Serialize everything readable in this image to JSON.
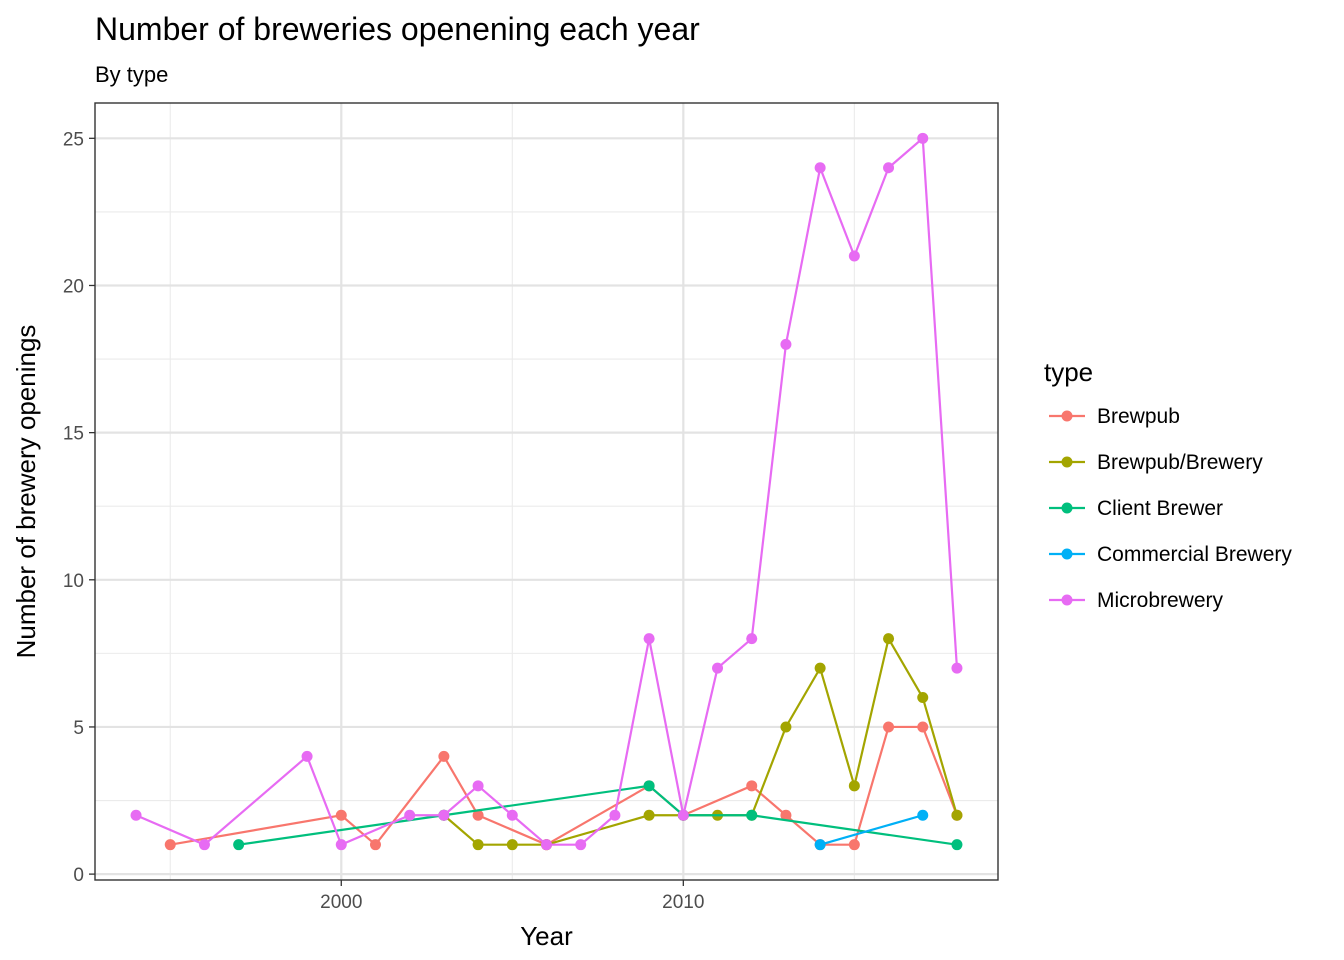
{
  "chart_data": {
    "type": "line",
    "title": "Number of breweries openening each year",
    "subtitle": "By type",
    "xlabel": "Year",
    "ylabel": "Number of brewery openings",
    "xlim": [
      1992.8,
      2019.2
    ],
    "ylim": [
      -0.2,
      26.2
    ],
    "x_ticks": [
      2000,
      2010
    ],
    "y_ticks": [
      0,
      5,
      10,
      15,
      20,
      25
    ],
    "grid": true,
    "legend": {
      "title": "type",
      "placement": "right"
    },
    "series": [
      {
        "name": "Brewpub",
        "color": "#F8766D",
        "points": [
          [
            1995,
            1
          ],
          [
            2000,
            2
          ],
          [
            2001,
            1
          ],
          [
            2003,
            4
          ],
          [
            2004,
            2
          ],
          [
            2006,
            1
          ],
          [
            2009,
            3
          ],
          [
            2010,
            2
          ],
          [
            2012,
            3
          ],
          [
            2013,
            2
          ],
          [
            2014,
            1
          ],
          [
            2015,
            1
          ],
          [
            2016,
            5
          ],
          [
            2017,
            5
          ],
          [
            2018,
            2
          ]
        ]
      },
      {
        "name": "Brewpub/Brewery",
        "color": "#A3A500",
        "points": [
          [
            2003,
            2
          ],
          [
            2004,
            1
          ],
          [
            2005,
            1
          ],
          [
            2006,
            1
          ],
          [
            2009,
            2
          ],
          [
            2010,
            2
          ],
          [
            2011,
            2
          ],
          [
            2012,
            2
          ],
          [
            2013,
            5
          ],
          [
            2014,
            7
          ],
          [
            2015,
            3
          ],
          [
            2016,
            8
          ],
          [
            2017,
            6
          ],
          [
            2018,
            2
          ]
        ]
      },
      {
        "name": "Client Brewer",
        "color": "#00BF7D",
        "points": [
          [
            1997,
            1
          ],
          [
            2003,
            2
          ],
          [
            2009,
            3
          ],
          [
            2010,
            2
          ],
          [
            2012,
            2
          ],
          [
            2018,
            1
          ]
        ]
      },
      {
        "name": "Commercial Brewery",
        "color": "#00B0F6",
        "points": [
          [
            2014,
            1
          ],
          [
            2017,
            2
          ]
        ]
      },
      {
        "name": "Microbrewery",
        "color": "#E76BF3",
        "points": [
          [
            1994,
            2
          ],
          [
            1996,
            1
          ],
          [
            1999,
            4
          ],
          [
            2000,
            1
          ],
          [
            2002,
            2
          ],
          [
            2003,
            2
          ],
          [
            2004,
            3
          ],
          [
            2005,
            2
          ],
          [
            2006,
            1
          ],
          [
            2007,
            1
          ],
          [
            2008,
            2
          ],
          [
            2009,
            8
          ],
          [
            2010,
            2
          ],
          [
            2011,
            7
          ],
          [
            2012,
            8
          ],
          [
            2013,
            18
          ],
          [
            2014,
            24
          ],
          [
            2015,
            21
          ],
          [
            2016,
            24
          ],
          [
            2017,
            25
          ],
          [
            2018,
            7
          ]
        ]
      }
    ]
  }
}
